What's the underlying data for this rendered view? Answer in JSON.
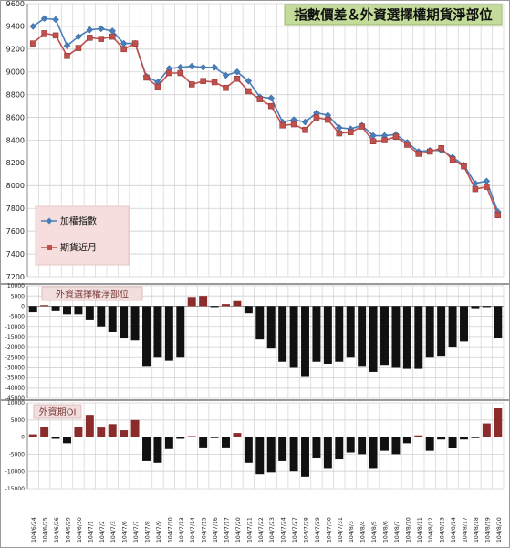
{
  "chart_data": [
    {
      "type": "line",
      "title": "指數價差＆外資選擇權期貨淨部位",
      "ylim": [
        7200,
        9600
      ],
      "yticks": [
        7200,
        7400,
        7600,
        7800,
        8000,
        8200,
        8400,
        8600,
        8800,
        9000,
        9200,
        9400,
        9600
      ],
      "grid": true,
      "legend_placement": "middle-left",
      "series": [
        {
          "name": "加權指數",
          "color": "#4a7ebb",
          "values": [
            9400,
            9470,
            9460,
            9230,
            9310,
            9370,
            9380,
            9360,
            9250,
            9250,
            8960,
            8910,
            9030,
            9040,
            9050,
            9040,
            9040,
            8970,
            9000,
            8920,
            8780,
            8770,
            8560,
            8580,
            8560,
            8640,
            8620,
            8510,
            8500,
            8530,
            8440,
            8440,
            8450,
            8380,
            8300,
            8310,
            8310,
            8250,
            8180,
            8020,
            8040,
            7770
          ]
        },
        {
          "name": "期貨近月",
          "color": "#c0504d",
          "values": [
            9250,
            9340,
            9320,
            9140,
            9210,
            9300,
            9290,
            9310,
            9200,
            9250,
            8950,
            8870,
            8990,
            8990,
            8890,
            8920,
            8910,
            8860,
            8940,
            8830,
            8760,
            8700,
            8530,
            8540,
            8490,
            8600,
            8580,
            8460,
            8470,
            8520,
            8390,
            8400,
            8430,
            8360,
            8280,
            8300,
            8330,
            8230,
            8170,
            7970,
            7990,
            7740
          ]
        }
      ]
    },
    {
      "type": "bar",
      "title": "外資選擇權淨部位",
      "ylim": [
        -45000,
        10000
      ],
      "yticks": [
        10000,
        5000,
        0,
        -5000,
        -10000,
        -15000,
        -20000,
        -25000,
        -30000,
        -35000,
        -40000,
        -45000
      ],
      "series": [
        {
          "name": "",
          "color_positive": "#8b2b2b",
          "color_negative": "#111111",
          "values": [
            -3000,
            500,
            -2000,
            -4000,
            -4000,
            -6500,
            -10000,
            -12500,
            -15500,
            -16500,
            -29500,
            -25000,
            -26500,
            -25000,
            4500,
            5000,
            -500,
            1000,
            2500,
            -3500,
            -16000,
            -20500,
            -27000,
            -30000,
            -34500,
            -27000,
            -28000,
            -27000,
            -25000,
            -29500,
            -32000,
            -29000,
            -30000,
            -30500,
            -30500,
            -25000,
            -24500,
            -20000,
            -17000,
            -1000,
            -500,
            -15500
          ]
        }
      ]
    },
    {
      "type": "bar",
      "title": "外資期OI",
      "ylim": [
        -15000,
        10000
      ],
      "yticks": [
        10000,
        5000,
        0,
        -5000,
        -10000,
        -15000
      ],
      "categories": [
        "104/6/24",
        "104/6/25",
        "104/6/26",
        "104/6/29",
        "104/6/30",
        "104/7/1",
        "104/7/2",
        "104/7/3",
        "104/7/6",
        "104/7/7",
        "104/7/8",
        "104/7/9",
        "104/7/10",
        "104/7/13",
        "104/7/14",
        "104/7/15",
        "104/7/16",
        "104/7/17",
        "104/7/20",
        "104/7/21",
        "104/7/22",
        "104/7/23",
        "104/7/24",
        "104/7/27",
        "104/7/28",
        "104/7/29",
        "104/7/30",
        "104/7/31",
        "104/8/3",
        "104/8/4",
        "104/8/5",
        "104/8/6",
        "104/8/7",
        "104/8/10",
        "104/8/11",
        "104/8/12",
        "104/8/13",
        "104/8/14",
        "104/8/17",
        "104/8/18",
        "104/8/19",
        "104/8/20"
      ],
      "series": [
        {
          "name": "",
          "color_positive": "#8b2b2b",
          "color_negative": "#111111",
          "values": [
            800,
            3000,
            -500,
            -1800,
            3000,
            6500,
            2800,
            3800,
            2000,
            5000,
            -7000,
            -7500,
            -3500,
            -500,
            300,
            -3000,
            -300,
            -3000,
            1200,
            -7500,
            -10800,
            -10300,
            -7000,
            -10000,
            -11500,
            -6000,
            -9000,
            -6500,
            -4500,
            -5000,
            -9000,
            -4000,
            -5000,
            -1800,
            500,
            -4000,
            -700,
            -3200,
            -700,
            -300,
            4000,
            8400
          ]
        }
      ]
    }
  ]
}
